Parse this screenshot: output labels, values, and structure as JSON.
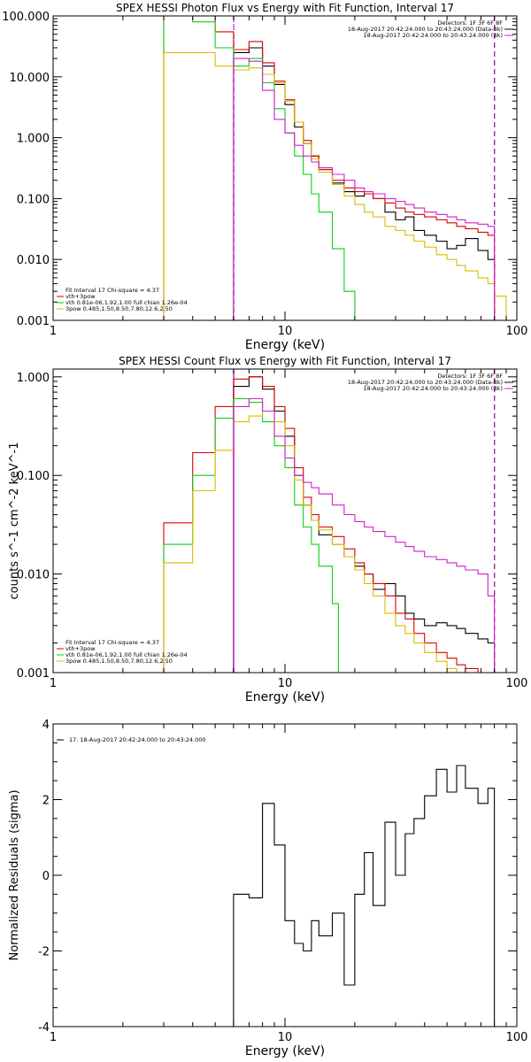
{
  "chart_data": [
    {
      "type": "line",
      "panel": "photon",
      "title": "SPEX HESSI Photon Flux vs Energy with Fit Function, Interval 17",
      "xlabel": "Energy (keV)",
      "ylabel": "",
      "x_scale": "log",
      "y_scale": "log",
      "xlim": [
        1,
        100
      ],
      "ylim": [
        0.001,
        100
      ],
      "x_ticks": [
        {
          "v": 1,
          "label": "1"
        },
        {
          "v": 10,
          "label": "10"
        },
        {
          "v": 100,
          "label": "100"
        }
      ],
      "y_ticks": [
        {
          "v": 0.001,
          "label": "0.001"
        },
        {
          "v": 0.01,
          "label": "0.010"
        },
        {
          "v": 0.1,
          "label": "0.100"
        },
        {
          "v": 1,
          "label": "1.000"
        },
        {
          "v": 10,
          "label": "10.000"
        },
        {
          "v": 100,
          "label": "100.000"
        }
      ],
      "colors": {
        "black": "#000000",
        "red": "#dd0000",
        "green": "#11cc11",
        "yellow": "#ddbb00",
        "magenta": "#cc22cc",
        "blue": "#2222cc"
      },
      "vlines": [
        {
          "x": 6.0,
          "color": "#2222cc",
          "style": "dotted"
        },
        {
          "x": 6.02,
          "color": "#cc22cc",
          "style": "dashed"
        },
        {
          "x": 80.0,
          "color": "#000000",
          "style": "dashed"
        },
        {
          "x": 80.2,
          "color": "#cc22cc",
          "style": "dashed"
        }
      ],
      "series": [
        {
          "color": "black",
          "start": 6.0,
          "edges": [
            6.0,
            7.0,
            8.0,
            9.0,
            10.0,
            11.0,
            12.0,
            13.0,
            14.0,
            16.0,
            18.0,
            20.0,
            22.0,
            24.0,
            27.0,
            30.0,
            33.0,
            36.0,
            40.0,
            45.0,
            50.0,
            55.0,
            60.0,
            68.0,
            75.0,
            80.0
          ],
          "values": [
            25,
            30,
            15,
            7.5,
            3.5,
            1.5,
            0.8,
            0.5,
            0.3,
            0.18,
            0.13,
            0.11,
            0.12,
            0.1,
            0.06,
            0.045,
            0.05,
            0.03,
            0.025,
            0.02,
            0.015,
            0.017,
            0.022,
            0.014,
            0.01
          ]
        },
        {
          "color": "red",
          "edges": [
            3.0,
            4.0,
            5.0,
            6.0,
            7.0,
            8.0,
            9.0,
            10.0,
            11.0,
            12.0,
            13.0,
            14.0,
            16.0,
            18.0,
            20.0,
            22.0,
            24.0,
            27.0,
            30.0,
            33.0,
            36.0,
            40.0,
            45.0,
            50.0,
            55.0,
            60.0,
            68.0,
            75.0,
            80.0
          ],
          "values": [
            100,
            100,
            55,
            28,
            38,
            17,
            8.5,
            4.2,
            1.8,
            0.9,
            0.5,
            0.3,
            0.2,
            0.15,
            0.13,
            0.12,
            0.1,
            0.085,
            0.07,
            0.06,
            0.055,
            0.05,
            0.045,
            0.04,
            0.035,
            0.032,
            0.028,
            0.025
          ]
        },
        {
          "color": "green",
          "edges": [
            3.0,
            4.0,
            5.0,
            6.0,
            7.0,
            8.0,
            9.0,
            10.0,
            11.0,
            12.0,
            13.0,
            14.0,
            16.0,
            18.0,
            20.0,
            22.0
          ],
          "values": [
            100,
            80,
            30,
            15,
            20,
            8,
            3,
            1.2,
            0.5,
            0.25,
            0.12,
            0.06,
            0.015,
            0.003,
            0.0008
          ]
        },
        {
          "color": "yellow",
          "edges": [
            3.0,
            4.0,
            5.0,
            6.0,
            7.0,
            8.0,
            9.0,
            10.0,
            11.0,
            12.0,
            13.0,
            14.0,
            16.0,
            18.0,
            20.0,
            22.0,
            24.0,
            27.0,
            30.0,
            33.0,
            36.0,
            40.0,
            45.0,
            50.0,
            55.0,
            60.0,
            68.0,
            75.0,
            80.0,
            90.0
          ],
          "values": [
            25,
            25,
            15,
            13,
            14,
            11,
            8,
            4,
            1.8,
            0.8,
            0.45,
            0.27,
            0.17,
            0.11,
            0.08,
            0.06,
            0.05,
            0.035,
            0.03,
            0.025,
            0.02,
            0.016,
            0.012,
            0.01,
            0.008,
            0.0065,
            0.005,
            0.004,
            0.0025
          ]
        },
        {
          "color": "magenta",
          "edges": [
            6.0,
            7.0,
            8.0,
            9.0,
            10.0,
            11.0,
            12.0,
            13.0,
            14.0,
            16.0,
            18.0,
            20.0,
            22.0,
            24.0,
            27.0,
            30.0,
            33.0,
            36.0,
            40.0,
            45.0,
            50.0,
            55.0,
            60.0,
            68.0,
            75.0,
            80.0
          ],
          "values": [
            20,
            18,
            6,
            2,
            1.2,
            0.75,
            0.5,
            0.4,
            0.32,
            0.25,
            0.2,
            0.15,
            0.13,
            0.12,
            0.1,
            0.09,
            0.08,
            0.07,
            0.06,
            0.055,
            0.05,
            0.045,
            0.04,
            0.038,
            0.035
          ]
        }
      ],
      "legend_topright": [
        {
          "text": "Detectors: 1F 3F 6F 8F",
          "color": null
        },
        {
          "text": "18-Aug-2017 20:42:24.000 to 20:43:24.000 (Data-Bk)",
          "color": "black"
        },
        {
          "text": "18-Aug-2017 20:42:24.000 to 20:43:24.000 (Bk)",
          "color": "magenta"
        }
      ],
      "legend_bottomleft": [
        {
          "text": "Fit Interval 17    Chi-square = 4.37",
          "color": null
        },
        {
          "text": "vth+3pow",
          "color": "red"
        },
        {
          "text": "vth 0.81e-06,1.92,1.00  full chian 1.26e-04",
          "color": "green"
        },
        {
          "text": "3pow 0.485,1.50,8.50,7.80,12.6,2.50",
          "color": "yellow"
        }
      ]
    },
    {
      "type": "line",
      "panel": "count",
      "title": "SPEX HESSI Count Flux vs Energy with Fit Function, Interval 17",
      "xlabel": "Energy (keV)",
      "ylabel": "counts s^-1 cm^-2 keV^-1",
      "x_scale": "log",
      "y_scale": "log",
      "xlim": [
        1,
        100
      ],
      "ylim": [
        0.001,
        1.2
      ],
      "x_ticks": [
        {
          "v": 1,
          "label": "1"
        },
        {
          "v": 10,
          "label": "10"
        },
        {
          "v": 100,
          "label": "100"
        }
      ],
      "y_ticks": [
        {
          "v": 0.001,
          "label": "0.001"
        },
        {
          "v": 0.01,
          "label": "0.010"
        },
        {
          "v": 0.1,
          "label": "0.100"
        },
        {
          "v": 1,
          "label": "1.000"
        }
      ],
      "colors": {
        "black": "#000000",
        "red": "#dd0000",
        "green": "#11cc11",
        "yellow": "#ddbb00",
        "magenta": "#cc22cc",
        "blue": "#2222cc"
      },
      "vlines": [
        {
          "x": 6.0,
          "color": "#2222cc",
          "style": "solid"
        },
        {
          "x": 6.02,
          "color": "#cc22cc",
          "style": "solid"
        },
        {
          "x": 80.0,
          "color": "#000000",
          "style": "dashed"
        },
        {
          "x": 80.2,
          "color": "#cc22cc",
          "style": "dashed"
        }
      ],
      "series": [
        {
          "color": "black",
          "edges": [
            6.0,
            7.0,
            8.0,
            9.0,
            10.0,
            11.0,
            12.0,
            13.0,
            14.0,
            16.0,
            18.0,
            20.0,
            22.0,
            24.0,
            27.0,
            30.0,
            33.0,
            36.0,
            40.0,
            45.0,
            50.0,
            55.0,
            60.0,
            68.0,
            75.0,
            80.0
          ],
          "values": [
            0.8,
            1.0,
            0.75,
            0.45,
            0.25,
            0.1,
            0.05,
            0.035,
            0.025,
            0.02,
            0.015,
            0.012,
            0.01,
            0.007,
            0.008,
            0.006,
            0.004,
            0.0035,
            0.003,
            0.0032,
            0.003,
            0.0028,
            0.0025,
            0.0022,
            0.002
          ]
        },
        {
          "color": "red",
          "edges": [
            3.0,
            4.0,
            5.0,
            6.0,
            7.0,
            8.0,
            9.0,
            10.0,
            11.0,
            12.0,
            13.0,
            14.0,
            16.0,
            18.0,
            20.0,
            22.0,
            24.0,
            27.0,
            30.0,
            33.0,
            36.0,
            40.0,
            45.0,
            50.0,
            55.0,
            60.0,
            68.0,
            75.0
          ],
          "values": [
            0.033,
            0.17,
            0.5,
            0.95,
            1.0,
            0.8,
            0.5,
            0.3,
            0.12,
            0.06,
            0.04,
            0.03,
            0.024,
            0.018,
            0.013,
            0.01,
            0.008,
            0.006,
            0.004,
            0.0035,
            0.0025,
            0.002,
            0.0016,
            0.0014,
            0.0012,
            0.0011,
            0.001
          ]
        },
        {
          "color": "green",
          "edges": [
            3.0,
            4.0,
            5.0,
            6.0,
            7.0,
            8.0,
            9.0,
            10.0,
            11.0,
            12.0,
            13.0,
            14.0,
            16.0,
            17.0
          ],
          "values": [
            0.02,
            0.1,
            0.38,
            0.6,
            0.55,
            0.35,
            0.2,
            0.12,
            0.05,
            0.03,
            0.02,
            0.012,
            0.005
          ]
        },
        {
          "color": "yellow",
          "edges": [
            3.0,
            4.0,
            5.0,
            6.0,
            7.0,
            8.0,
            9.0,
            10.0,
            11.0,
            12.0,
            13.0,
            14.0,
            16.0,
            18.0,
            20.0,
            22.0,
            24.0,
            27.0,
            30.0,
            33.0,
            36.0,
            40.0,
            45.0,
            50.0,
            55.0,
            60.0,
            68.0,
            75.0
          ],
          "values": [
            0.013,
            0.07,
            0.18,
            0.35,
            0.4,
            0.45,
            0.35,
            0.2,
            0.09,
            0.05,
            0.035,
            0.028,
            0.02,
            0.015,
            0.011,
            0.008,
            0.006,
            0.004,
            0.003,
            0.0025,
            0.002,
            0.0016,
            0.0013,
            0.0011,
            0.001,
            0.0009,
            0.0008
          ]
        },
        {
          "color": "magenta",
          "edges": [
            6.0,
            7.0,
            8.0,
            9.0,
            10.0,
            11.0,
            12.0,
            13.0,
            14.0,
            16.0,
            18.0,
            20.0,
            22.0,
            24.0,
            27.0,
            30.0,
            33.0,
            36.0,
            40.0,
            45.0,
            50.0,
            55.0,
            60.0,
            68.0,
            75.0,
            80.0
          ],
          "values": [
            0.5,
            0.6,
            0.45,
            0.25,
            0.15,
            0.1,
            0.085,
            0.075,
            0.065,
            0.05,
            0.04,
            0.034,
            0.03,
            0.027,
            0.024,
            0.021,
            0.019,
            0.017,
            0.015,
            0.014,
            0.013,
            0.012,
            0.011,
            0.01,
            0.006
          ]
        }
      ],
      "legend_topright": [
        {
          "text": "Detectors: 1F 3F 6F 8F",
          "color": null
        },
        {
          "text": "18-Aug-2017 20:42:24.000 to 20:43:24.000 (Data-Bk)",
          "color": "black"
        },
        {
          "text": "18-Aug-2017 20:42:24.000 to 20:43:24.000 (Bk)",
          "color": "magenta"
        }
      ],
      "legend_bottomleft": [
        {
          "text": "Fit Interval 17    Chi-square = 4.37",
          "color": null
        },
        {
          "text": "vth+3pow",
          "color": "red"
        },
        {
          "text": "vth 0.81e-06,1.92,1.00  full chian 1.26e-04",
          "color": "green"
        },
        {
          "text": "3pow 0.485,1.50,8.50,7.80,12.6,2.50",
          "color": "yellow"
        }
      ]
    },
    {
      "type": "line",
      "panel": "residuals",
      "title": "",
      "xlabel": "Energy (keV)",
      "ylabel": "Normalized Residuals (sigma)",
      "x_scale": "log",
      "y_scale": "linear",
      "xlim": [
        1,
        100
      ],
      "ylim": [
        -4,
        4
      ],
      "x_ticks": [
        {
          "v": 1,
          "label": "1"
        },
        {
          "v": 10,
          "label": "10"
        },
        {
          "v": 100,
          "label": "100"
        }
      ],
      "y_ticks": [
        {
          "v": -4,
          "label": "-4"
        },
        {
          "v": -2,
          "label": "-2"
        },
        {
          "v": 0,
          "label": "0"
        },
        {
          "v": 2,
          "label": "2"
        },
        {
          "v": 4,
          "label": "4"
        }
      ],
      "colors": {
        "black": "#000000"
      },
      "vlines": [],
      "series": [
        {
          "color": "black",
          "drop_to_floor": true,
          "edges": [
            6.0,
            7.0,
            8.0,
            9.0,
            10.0,
            11.0,
            12.0,
            13.0,
            14.0,
            16.0,
            18.0,
            20.0,
            22.0,
            24.0,
            27.0,
            30.0,
            33.0,
            36.0,
            40.0,
            45.0,
            50.0,
            55.0,
            60.0,
            68.0,
            75.0,
            80.0
          ],
          "values": [
            -0.5,
            -0.6,
            1.9,
            0.8,
            -1.2,
            -1.8,
            -2.0,
            -1.2,
            -1.6,
            -1.0,
            -2.9,
            -0.5,
            0.6,
            -0.8,
            1.4,
            0.0,
            1.1,
            1.5,
            2.1,
            2.8,
            2.2,
            2.9,
            2.3,
            1.9,
            2.3
          ]
        }
      ],
      "legend_topleft": [
        {
          "text": "17. 18-Aug-2017 20:42:24.000 to 20:43:24.000",
          "color": "black"
        }
      ]
    }
  ]
}
